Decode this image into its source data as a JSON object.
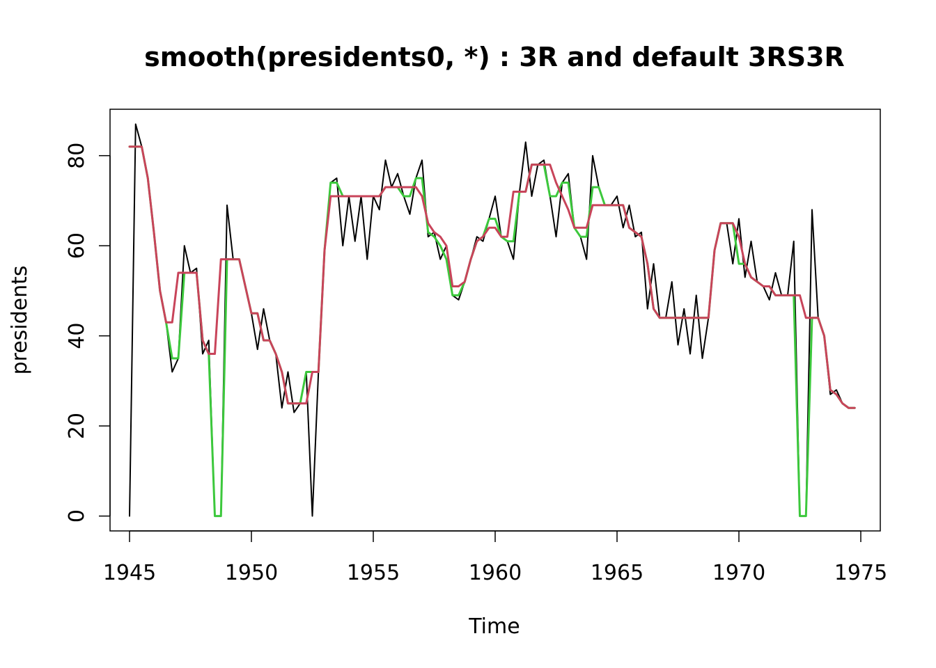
{
  "chart_data": {
    "type": "line",
    "title": "smooth(presidents0, *) :  3R and default 3RS3R",
    "xlabel": "Time",
    "ylabel": "presidents",
    "xlim": [
      1944.2,
      1975.8
    ],
    "ylim": [
      -3.3,
      90.3
    ],
    "x_ticks": [
      1945,
      1950,
      1955,
      1960,
      1965,
      1970,
      1975
    ],
    "y_ticks": [
      0,
      20,
      40,
      60,
      80
    ],
    "grid": false,
    "x_start": 1945,
    "x_step": 0.25,
    "series": [
      {
        "color": "#000000",
        "values": [
          0,
          87,
          82,
          75,
          63,
          50,
          43,
          32,
          35,
          60,
          54,
          55,
          36,
          39,
          0,
          0,
          69,
          57,
          57,
          51,
          45,
          37,
          46,
          39,
          36,
          24,
          32,
          23,
          25,
          32,
          0,
          32,
          59,
          74,
          75,
          60,
          71,
          61,
          71,
          57,
          71,
          68,
          79,
          73,
          76,
          71,
          67,
          75,
          79,
          62,
          63,
          57,
          60,
          49,
          48,
          52,
          57,
          62,
          61,
          66,
          71,
          62,
          61,
          57,
          72,
          83,
          71,
          78,
          79,
          71,
          62,
          74,
          76,
          64,
          62,
          57,
          80,
          73,
          69,
          69,
          71,
          64,
          69,
          62,
          63,
          46,
          56,
          44,
          44,
          52,
          38,
          46,
          36,
          49,
          35,
          44,
          59,
          65,
          65,
          56,
          66,
          53,
          61,
          52,
          51,
          48,
          54,
          49,
          49,
          61,
          0,
          0,
          68,
          44,
          40,
          27,
          28,
          25,
          24,
          24
        ]
      },
      {
        "color": "#3CC83C",
        "values": [
          82,
          82,
          82,
          75,
          63,
          50,
          43,
          35,
          35,
          54,
          54,
          54,
          39,
          36,
          0,
          0,
          57,
          57,
          57,
          51,
          45,
          45,
          39,
          39,
          36,
          32,
          25,
          25,
          25,
          32,
          32,
          32,
          59,
          74,
          74,
          71,
          71,
          71,
          71,
          71,
          71,
          71,
          73,
          73,
          73,
          71,
          71,
          75,
          75,
          63,
          62,
          60,
          57,
          49,
          49,
          52,
          57,
          61,
          62,
          66,
          66,
          62,
          61,
          61,
          72,
          72,
          78,
          78,
          78,
          71,
          71,
          74,
          74,
          64,
          62,
          62,
          73,
          73,
          69,
          69,
          69,
          69,
          64,
          63,
          62,
          56,
          46,
          44,
          44,
          44,
          44,
          44,
          44,
          44,
          44,
          44,
          59,
          65,
          65,
          65,
          56,
          56,
          53,
          52,
          51,
          51,
          49,
          49,
          49,
          49,
          0,
          0,
          44,
          44,
          40,
          28,
          27,
          25,
          24,
          24
        ]
      },
      {
        "color": "#C8445A",
        "values": [
          82,
          82,
          82,
          75,
          63,
          50,
          43,
          43,
          54,
          54,
          54,
          54,
          39,
          36,
          36,
          57,
          57,
          57,
          57,
          51,
          45,
          45,
          39,
          39,
          36,
          32,
          25,
          25,
          25,
          25,
          32,
          32,
          59,
          71,
          71,
          71,
          71,
          71,
          71,
          71,
          71,
          71,
          73,
          73,
          73,
          73,
          73,
          73,
          71,
          65,
          63,
          62,
          60,
          51,
          51,
          52,
          57,
          61,
          62,
          64,
          64,
          62,
          62,
          72,
          72,
          72,
          78,
          78,
          78,
          78,
          74,
          71,
          68,
          64,
          64,
          64,
          69,
          69,
          69,
          69,
          69,
          69,
          64,
          63,
          62,
          56,
          46,
          44,
          44,
          44,
          44,
          44,
          44,
          44,
          44,
          44,
          59,
          65,
          65,
          65,
          62,
          56,
          53,
          52,
          51,
          51,
          49,
          49,
          49,
          49,
          49,
          44,
          44,
          44,
          40,
          28,
          27,
          25,
          24,
          24
        ]
      }
    ]
  }
}
